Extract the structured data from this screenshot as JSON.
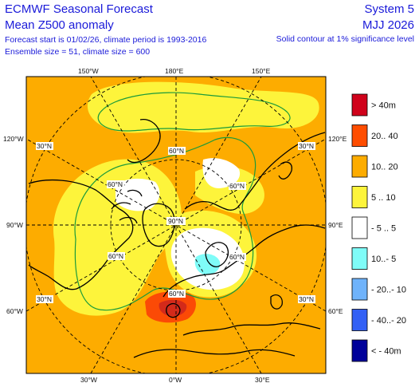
{
  "header": {
    "title": "ECMWF Seasonal Forecast",
    "subtitle": "Mean Z500 anomaly",
    "forecast_info": "Forecast start is 01/02/26, climate period is 1993-2016",
    "ensemble_info": "Ensemble size = 51, climate size = 600",
    "system": "System 5",
    "season": "MJJ 2026",
    "significance_note": "Solid contour at 1% significance level"
  },
  "map": {
    "projection": "north-polar-stereographic",
    "top_ticks": [
      "150°W",
      "180°E",
      "150°E"
    ],
    "bottom_ticks": [
      "30°W",
      "0°W",
      "30°E"
    ],
    "left_ticks": [
      "120°W",
      "90°W",
      "60°W"
    ],
    "right_ticks": [
      "120°E",
      "90°E",
      "60°E"
    ],
    "inner_labels": {
      "lat60_top": "60°N",
      "lat60_left": "60°N",
      "lat60_right": "60°N",
      "lat60_bottom": "60°N",
      "lat60_lowerleft": "60°N",
      "lat60_lowerright": "60°N",
      "lat90": "90°N",
      "lat30_ul": "30°N",
      "lat30_ur": "30°N",
      "lat30_ll": "30°N",
      "lat30_lr": "30°N"
    },
    "colors": {
      "background": "#fdac00",
      "yellow": "#fdf43b",
      "white": "#ffffff",
      "red": "#d32a1a",
      "orange_red": "#fb4a06",
      "cyan": "#7ffcf8",
      "contour": "#1a9a3a",
      "coast": "#000000",
      "grid": "#000000"
    }
  },
  "legend": {
    "items": [
      {
        "label": ">  40m",
        "color": "#d0021b"
      },
      {
        "label": "20.. 40",
        "color": "#ff4d00"
      },
      {
        "label": "10.. 20",
        "color": "#fdac00"
      },
      {
        "label": "5 .. 10",
        "color": "#fdf43b"
      },
      {
        "label": "- 5 .. 5",
        "color": "#ffffff"
      },
      {
        "label": "10..- 5",
        "color": "#7ffcf8"
      },
      {
        "label": "- 20..- 10",
        "color": "#6fb3fb"
      },
      {
        "label": "- 40..- 20",
        "color": "#3260f5"
      },
      {
        "label": "< - 40m",
        "color": "#00019a"
      }
    ]
  }
}
